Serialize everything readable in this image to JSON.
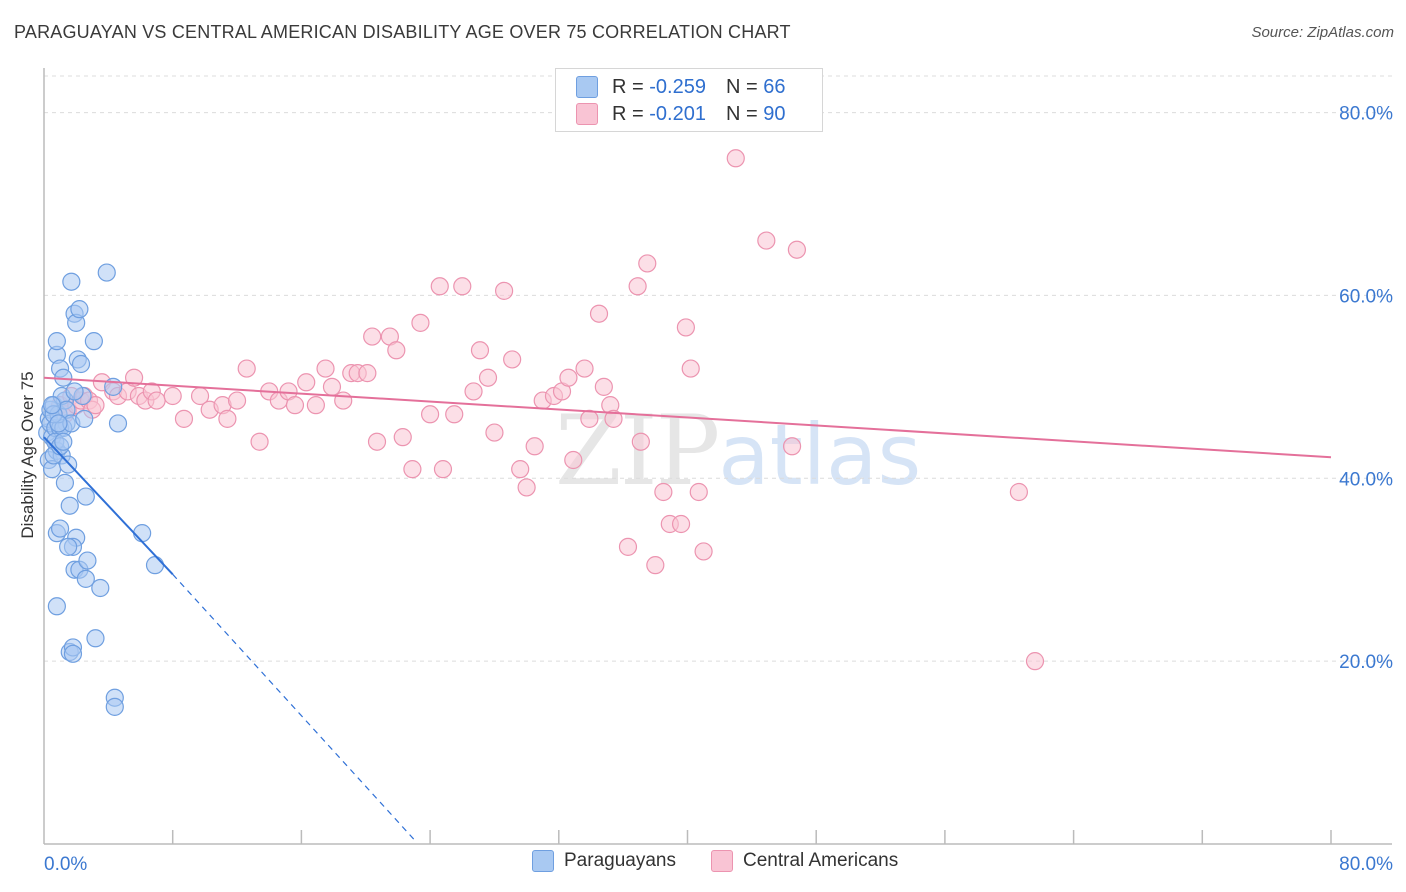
{
  "title": "PARAGUAYAN VS CENTRAL AMERICAN DISABILITY AGE OVER 75 CORRELATION CHART",
  "source": "Source: ZipAtlas.com",
  "watermark": {
    "zip": "ZIP",
    "atlas": "atlas"
  },
  "legend": {
    "r_label": "R =",
    "n_label": "N =",
    "series": [
      {
        "r": "-0.259",
        "n": "66",
        "color": "#a9c9f2",
        "border": "#6f9fe0"
      },
      {
        "r": "-0.201",
        "n": "90",
        "color": "#f9c4d4",
        "border": "#ec94b0"
      }
    ]
  },
  "bottom_legend": [
    "Paraguayans",
    "Central Americans"
  ],
  "chart_data": {
    "type": "scatter",
    "title": "PARAGUAYAN VS CENTRAL AMERICAN DISABILITY AGE OVER 75 CORRELATION CHART",
    "xlabel": "",
    "ylabel": "Disability Age Over 75",
    "xlim": [
      0,
      80
    ],
    "ylim": [
      0,
      84
    ],
    "x_tick_labels": [
      "0.0%",
      "80.0%"
    ],
    "y_ticks": [
      20,
      40,
      60,
      80
    ],
    "y_tick_labels": [
      "20.0%",
      "40.0%",
      "60.0%",
      "80.0%"
    ],
    "series": [
      {
        "name": "Paraguayans",
        "color": "#5b93e6",
        "fill": "#a9c9f2",
        "points": [
          [
            0.2,
            45
          ],
          [
            0.3,
            46.5
          ],
          [
            0.4,
            47.5
          ],
          [
            0.5,
            44.5
          ],
          [
            0.6,
            48
          ],
          [
            0.3,
            42
          ],
          [
            0.5,
            41
          ],
          [
            0.8,
            43
          ],
          [
            0.4,
            46
          ],
          [
            0.7,
            45.5
          ],
          [
            0.8,
            53.5
          ],
          [
            0.8,
            55
          ],
          [
            1.0,
            52
          ],
          [
            1.2,
            51
          ],
          [
            1.1,
            42.5
          ],
          [
            1.5,
            41.5
          ],
          [
            1.3,
            39.5
          ],
          [
            1.6,
            37
          ],
          [
            1.4,
            46
          ],
          [
            1.0,
            45.5
          ],
          [
            1.7,
            61.5
          ],
          [
            1.9,
            58
          ],
          [
            2.0,
            57
          ],
          [
            2.2,
            58.5
          ],
          [
            2.1,
            53
          ],
          [
            2.3,
            52.5
          ],
          [
            2.4,
            49
          ],
          [
            2.6,
            38
          ],
          [
            2.0,
            33.5
          ],
          [
            1.8,
            32.5
          ],
          [
            1.9,
            30
          ],
          [
            2.2,
            30
          ],
          [
            2.6,
            29
          ],
          [
            2.7,
            31
          ],
          [
            3.1,
            55
          ],
          [
            3.2,
            22.5
          ],
          [
            3.5,
            28
          ],
          [
            3.9,
            62.5
          ],
          [
            4.3,
            50
          ],
          [
            4.4,
            16
          ],
          [
            4.4,
            15
          ],
          [
            4.6,
            46
          ],
          [
            6.1,
            34
          ],
          [
            6.9,
            30.5
          ],
          [
            0.8,
            26
          ],
          [
            1.6,
            21
          ],
          [
            1.8,
            21.5
          ],
          [
            1.8,
            20.8
          ],
          [
            0.8,
            34
          ],
          [
            1.0,
            34.5
          ],
          [
            1.5,
            32.5
          ],
          [
            1.2,
            45.5
          ],
          [
            0.9,
            47
          ],
          [
            1.3,
            48.5
          ],
          [
            1.1,
            49
          ],
          [
            1.4,
            47.5
          ],
          [
            0.6,
            47
          ],
          [
            0.5,
            48
          ],
          [
            0.7,
            44
          ],
          [
            1.7,
            46
          ],
          [
            0.6,
            42.5
          ],
          [
            1.0,
            43.5
          ],
          [
            2.5,
            46.5
          ],
          [
            1.9,
            49.5
          ],
          [
            0.9,
            46
          ],
          [
            1.2,
            44
          ]
        ]
      },
      {
        "name": "Central Americans",
        "color": "#e8799c",
        "fill": "#f9c4d4",
        "points": [
          [
            1.0,
            48
          ],
          [
            1.3,
            47
          ],
          [
            1.5,
            47.5
          ],
          [
            1.7,
            49
          ],
          [
            2.0,
            48
          ],
          [
            2.3,
            48.5
          ],
          [
            2.5,
            49
          ],
          [
            2.8,
            48.5
          ],
          [
            3.0,
            47.5
          ],
          [
            3.2,
            48
          ],
          [
            3.6,
            50.5
          ],
          [
            4.3,
            49.5
          ],
          [
            4.6,
            49
          ],
          [
            5.2,
            49.5
          ],
          [
            5.6,
            51
          ],
          [
            5.9,
            49
          ],
          [
            6.3,
            48.5
          ],
          [
            6.7,
            49.5
          ],
          [
            7.0,
            48.5
          ],
          [
            8.0,
            49
          ],
          [
            8.7,
            46.5
          ],
          [
            9.7,
            49
          ],
          [
            10.3,
            47.5
          ],
          [
            11.1,
            48
          ],
          [
            11.4,
            46.5
          ],
          [
            12.0,
            48.5
          ],
          [
            12.6,
            52
          ],
          [
            13.4,
            44
          ],
          [
            14.0,
            49.5
          ],
          [
            14.6,
            48.5
          ],
          [
            15.2,
            49.5
          ],
          [
            15.6,
            48
          ],
          [
            16.3,
            50.5
          ],
          [
            16.9,
            48
          ],
          [
            17.5,
            52
          ],
          [
            17.9,
            50
          ],
          [
            18.6,
            48.5
          ],
          [
            19.1,
            51.5
          ],
          [
            19.5,
            51.5
          ],
          [
            20.1,
            51.5
          ],
          [
            20.4,
            55.5
          ],
          [
            20.7,
            44
          ],
          [
            21.5,
            55.5
          ],
          [
            21.9,
            54
          ],
          [
            22.3,
            44.5
          ],
          [
            22.9,
            41
          ],
          [
            23.4,
            57
          ],
          [
            24.0,
            47
          ],
          [
            24.6,
            61
          ],
          [
            24.8,
            41
          ],
          [
            25.5,
            47
          ],
          [
            26.0,
            61
          ],
          [
            26.7,
            49.5
          ],
          [
            27.1,
            54
          ],
          [
            27.6,
            51
          ],
          [
            28.0,
            45
          ],
          [
            28.6,
            60.5
          ],
          [
            29.1,
            53
          ],
          [
            29.6,
            41
          ],
          [
            30.0,
            39
          ],
          [
            30.5,
            43.5
          ],
          [
            31.0,
            48.5
          ],
          [
            31.7,
            49
          ],
          [
            32.2,
            49.5
          ],
          [
            32.6,
            51
          ],
          [
            32.9,
            42
          ],
          [
            33.6,
            52
          ],
          [
            33.9,
            46.5
          ],
          [
            34.5,
            58
          ],
          [
            34.8,
            50
          ],
          [
            35.2,
            48
          ],
          [
            35.4,
            46.5
          ],
          [
            36.3,
            32.5
          ],
          [
            36.9,
            61
          ],
          [
            37.1,
            44
          ],
          [
            37.5,
            63.5
          ],
          [
            38.0,
            30.5
          ],
          [
            38.5,
            38.5
          ],
          [
            38.9,
            35
          ],
          [
            39.6,
            35
          ],
          [
            39.9,
            56.5
          ],
          [
            40.2,
            52
          ],
          [
            40.7,
            38.5
          ],
          [
            41.0,
            32
          ],
          [
            43.0,
            75
          ],
          [
            44.9,
            66
          ],
          [
            46.5,
            43.5
          ],
          [
            46.8,
            65
          ],
          [
            60.6,
            38.5
          ],
          [
            61.6,
            20
          ]
        ]
      }
    ],
    "trend_lines": [
      {
        "series": "Paraguayans",
        "x": [
          0,
          8
        ],
        "y": [
          44.5,
          29.5
        ],
        "extended_dashed_to": [
          23,
          0.5
        ]
      },
      {
        "series": "Central Americans",
        "x": [
          0,
          80
        ],
        "y": [
          51,
          42.3
        ]
      }
    ]
  }
}
